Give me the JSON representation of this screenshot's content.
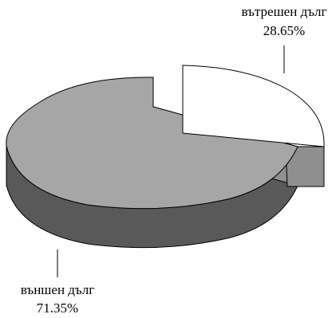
{
  "chart_data": {
    "type": "pie",
    "style": "3d-exploded",
    "slices": [
      {
        "label": "вътрешен дълг",
        "value": 28.65,
        "value_text": "28.65%",
        "color": "#ffffff",
        "exploded": true
      },
      {
        "label": "външен дълг",
        "value": 71.35,
        "value_text": "71.35%",
        "color": "#a6a6a6",
        "exploded": false
      }
    ],
    "colors": {
      "outline": "#000000",
      "side_dark": "#595959",
      "side_inner": "#8f8f8f"
    }
  }
}
